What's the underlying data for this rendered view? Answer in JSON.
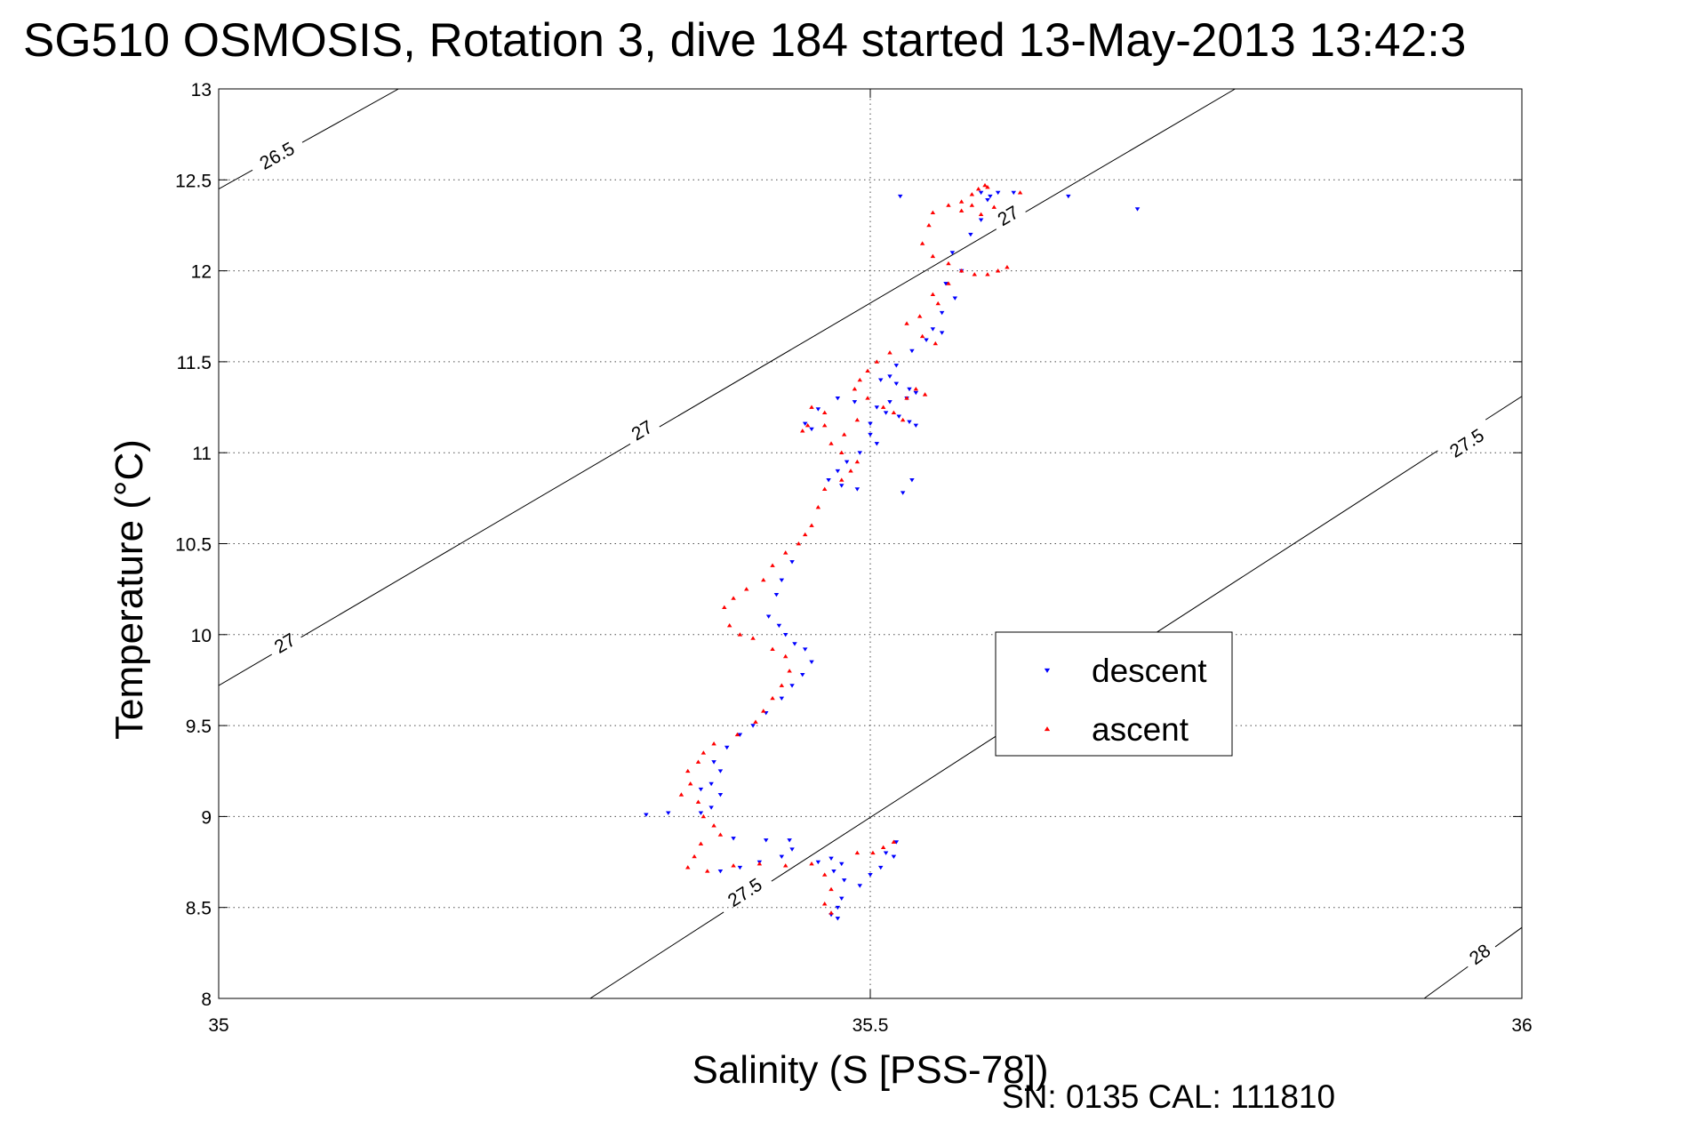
{
  "chart_data": {
    "type": "scatter",
    "title": "SG510 OSMOSIS, Rotation 3, dive 184 started 13-May-2013 13:42:3",
    "xlabel": "Salinity (S [PSS-78])",
    "ylabel": "Temperature (°C)",
    "xlim": [
      35,
      36
    ],
    "ylim": [
      8,
      13
    ],
    "xticks": [
      "35",
      "35.5",
      "36"
    ],
    "yticks": [
      "8",
      "8.5",
      "9",
      "9.5",
      "10",
      "10.5",
      "11",
      "11.5",
      "12",
      "12.5",
      "13"
    ],
    "grid": true,
    "legend_position": "lower-right",
    "density_contours": [
      {
        "label": "26.5",
        "points": [
          [
            35.0,
            12.45
          ],
          [
            35.138,
            13.0
          ]
        ],
        "labels": [
          [
            35.045,
            12.63
          ]
        ]
      },
      {
        "label": "27",
        "points": [
          [
            35.0,
            9.72
          ],
          [
            35.78,
            13.0
          ]
        ],
        "labels": [
          [
            35.051,
            9.95
          ],
          [
            35.325,
            11.12
          ],
          [
            35.606,
            12.3
          ]
        ]
      },
      {
        "label": "27.5",
        "points": [
          [
            35.285,
            8.0
          ],
          [
            36.0,
            11.31
          ]
        ],
        "labels": [
          [
            35.404,
            8.58
          ],
          [
            35.958,
            11.05
          ]
        ]
      },
      {
        "label": "28",
        "points": [
          [
            35.925,
            8.0
          ],
          [
            36.0,
            8.39
          ]
        ],
        "labels": [
          [
            35.968,
            8.24
          ]
        ]
      }
    ],
    "series": [
      {
        "name": "descent",
        "color": "#0000ff",
        "marker": "triangle-down",
        "points": [
          [
            35.523,
            12.41
          ],
          [
            35.585,
            12.43
          ],
          [
            35.592,
            12.41
          ],
          [
            35.598,
            12.43
          ],
          [
            35.61,
            12.43
          ],
          [
            35.652,
            12.41
          ],
          [
            35.705,
            12.34
          ],
          [
            35.59,
            12.39
          ],
          [
            35.585,
            12.28
          ],
          [
            35.577,
            12.2
          ],
          [
            35.563,
            12.1
          ],
          [
            35.57,
            12.0
          ],
          [
            35.558,
            11.93
          ],
          [
            35.565,
            11.85
          ],
          [
            35.555,
            11.77
          ],
          [
            35.548,
            11.68
          ],
          [
            35.555,
            11.66
          ],
          [
            35.543,
            11.62
          ],
          [
            35.532,
            11.56
          ],
          [
            35.52,
            11.48
          ],
          [
            35.515,
            11.42
          ],
          [
            35.508,
            11.4
          ],
          [
            35.52,
            11.38
          ],
          [
            35.53,
            11.35
          ],
          [
            35.535,
            11.33
          ],
          [
            35.528,
            11.3
          ],
          [
            35.515,
            11.28
          ],
          [
            35.505,
            11.25
          ],
          [
            35.512,
            11.22
          ],
          [
            35.522,
            11.2
          ],
          [
            35.53,
            11.17
          ],
          [
            35.535,
            11.15
          ],
          [
            35.5,
            11.16
          ],
          [
            35.488,
            11.28
          ],
          [
            35.475,
            11.3
          ],
          [
            35.46,
            11.24
          ],
          [
            35.45,
            11.16
          ],
          [
            35.455,
            11.13
          ],
          [
            35.5,
            11.1
          ],
          [
            35.505,
            11.05
          ],
          [
            35.492,
            11.0
          ],
          [
            35.482,
            10.95
          ],
          [
            35.475,
            10.9
          ],
          [
            35.468,
            10.85
          ],
          [
            35.478,
            10.82
          ],
          [
            35.49,
            10.8
          ],
          [
            35.525,
            10.78
          ],
          [
            35.532,
            10.85
          ],
          [
            35.44,
            10.4
          ],
          [
            35.432,
            10.3
          ],
          [
            35.428,
            10.22
          ],
          [
            35.422,
            10.1
          ],
          [
            35.43,
            10.05
          ],
          [
            35.435,
            10.0
          ],
          [
            35.442,
            9.95
          ],
          [
            35.45,
            9.92
          ],
          [
            35.455,
            9.85
          ],
          [
            35.448,
            9.78
          ],
          [
            35.44,
            9.72
          ],
          [
            35.432,
            9.65
          ],
          [
            35.42,
            9.57
          ],
          [
            35.41,
            9.5
          ],
          [
            35.4,
            9.45
          ],
          [
            35.39,
            9.38
          ],
          [
            35.38,
            9.3
          ],
          [
            35.385,
            9.25
          ],
          [
            35.378,
            9.18
          ],
          [
            35.37,
            9.15
          ],
          [
            35.385,
            9.12
          ],
          [
            35.378,
            9.05
          ],
          [
            35.37,
            9.02
          ],
          [
            35.345,
            9.02
          ],
          [
            35.328,
            9.01
          ],
          [
            35.395,
            8.88
          ],
          [
            35.42,
            8.87
          ],
          [
            35.438,
            8.87
          ],
          [
            35.44,
            8.82
          ],
          [
            35.432,
            8.78
          ],
          [
            35.415,
            8.75
          ],
          [
            35.4,
            8.72
          ],
          [
            35.385,
            8.7
          ],
          [
            35.46,
            8.75
          ],
          [
            35.47,
            8.77
          ],
          [
            35.478,
            8.74
          ],
          [
            35.472,
            8.7
          ],
          [
            35.48,
            8.65
          ],
          [
            35.492,
            8.62
          ],
          [
            35.5,
            8.68
          ],
          [
            35.508,
            8.72
          ],
          [
            35.518,
            8.78
          ],
          [
            35.52,
            8.86
          ],
          [
            35.512,
            8.8
          ],
          [
            35.478,
            8.55
          ],
          [
            35.475,
            8.5
          ],
          [
            35.47,
            8.46
          ],
          [
            35.475,
            8.44
          ]
        ]
      },
      {
        "name": "ascent",
        "color": "#ff0000",
        "marker": "triangle-up",
        "points": [
          [
            35.588,
            12.47
          ],
          [
            35.583,
            12.45
          ],
          [
            35.59,
            12.46
          ],
          [
            35.578,
            12.42
          ],
          [
            35.57,
            12.38
          ],
          [
            35.56,
            12.36
          ],
          [
            35.548,
            12.32
          ],
          [
            35.57,
            12.33
          ],
          [
            35.578,
            12.36
          ],
          [
            35.585,
            12.31
          ],
          [
            35.595,
            12.35
          ],
          [
            35.615,
            12.43
          ],
          [
            35.545,
            12.25
          ],
          [
            35.54,
            12.15
          ],
          [
            35.548,
            12.08
          ],
          [
            35.56,
            12.04
          ],
          [
            35.57,
            12.0
          ],
          [
            35.58,
            11.98
          ],
          [
            35.59,
            11.98
          ],
          [
            35.598,
            12.0
          ],
          [
            35.605,
            12.02
          ],
          [
            35.56,
            11.93
          ],
          [
            35.548,
            11.87
          ],
          [
            35.552,
            11.82
          ],
          [
            35.538,
            11.75
          ],
          [
            35.528,
            11.71
          ],
          [
            35.54,
            11.64
          ],
          [
            35.55,
            11.6
          ],
          [
            35.515,
            11.55
          ],
          [
            35.505,
            11.5
          ],
          [
            35.498,
            11.45
          ],
          [
            35.492,
            11.4
          ],
          [
            35.488,
            11.35
          ],
          [
            35.498,
            11.3
          ],
          [
            35.51,
            11.25
          ],
          [
            35.518,
            11.22
          ],
          [
            35.525,
            11.18
          ],
          [
            35.528,
            11.3
          ],
          [
            35.535,
            11.35
          ],
          [
            35.542,
            11.32
          ],
          [
            35.49,
            11.18
          ],
          [
            35.48,
            11.1
          ],
          [
            35.47,
            11.05
          ],
          [
            35.478,
            11.0
          ],
          [
            35.49,
            10.95
          ],
          [
            35.485,
            10.9
          ],
          [
            35.478,
            10.85
          ],
          [
            35.465,
            10.8
          ],
          [
            35.46,
            10.7
          ],
          [
            35.455,
            10.6
          ],
          [
            35.45,
            10.55
          ],
          [
            35.445,
            10.5
          ],
          [
            35.435,
            10.45
          ],
          [
            35.425,
            10.38
          ],
          [
            35.418,
            10.3
          ],
          [
            35.405,
            10.25
          ],
          [
            35.395,
            10.2
          ],
          [
            35.388,
            10.15
          ],
          [
            35.392,
            10.05
          ],
          [
            35.4,
            10.0
          ],
          [
            35.41,
            9.98
          ],
          [
            35.425,
            9.92
          ],
          [
            35.435,
            9.88
          ],
          [
            35.438,
            9.8
          ],
          [
            35.432,
            9.72
          ],
          [
            35.425,
            9.65
          ],
          [
            35.418,
            9.58
          ],
          [
            35.412,
            9.52
          ],
          [
            35.398,
            9.45
          ],
          [
            35.38,
            9.4
          ],
          [
            35.372,
            9.35
          ],
          [
            35.368,
            9.3
          ],
          [
            35.36,
            9.25
          ],
          [
            35.362,
            9.18
          ],
          [
            35.355,
            9.12
          ],
          [
            35.368,
            9.08
          ],
          [
            35.372,
            9.0
          ],
          [
            35.38,
            8.95
          ],
          [
            35.385,
            8.9
          ],
          [
            35.37,
            8.85
          ],
          [
            35.365,
            8.78
          ],
          [
            35.36,
            8.72
          ],
          [
            35.375,
            8.7
          ],
          [
            35.395,
            8.73
          ],
          [
            35.415,
            8.74
          ],
          [
            35.435,
            8.73
          ],
          [
            35.455,
            8.74
          ],
          [
            35.465,
            8.68
          ],
          [
            35.47,
            8.6
          ],
          [
            35.465,
            8.52
          ],
          [
            35.47,
            8.47
          ],
          [
            35.49,
            8.8
          ],
          [
            35.502,
            8.8
          ],
          [
            35.51,
            8.83
          ],
          [
            35.518,
            8.86
          ],
          [
            35.465,
            11.15
          ],
          [
            35.452,
            11.15
          ],
          [
            35.448,
            11.12
          ],
          [
            35.455,
            11.25
          ],
          [
            35.465,
            11.22
          ]
        ]
      }
    ],
    "annotations": [
      "SN: 0135  CAL: 111810"
    ]
  }
}
